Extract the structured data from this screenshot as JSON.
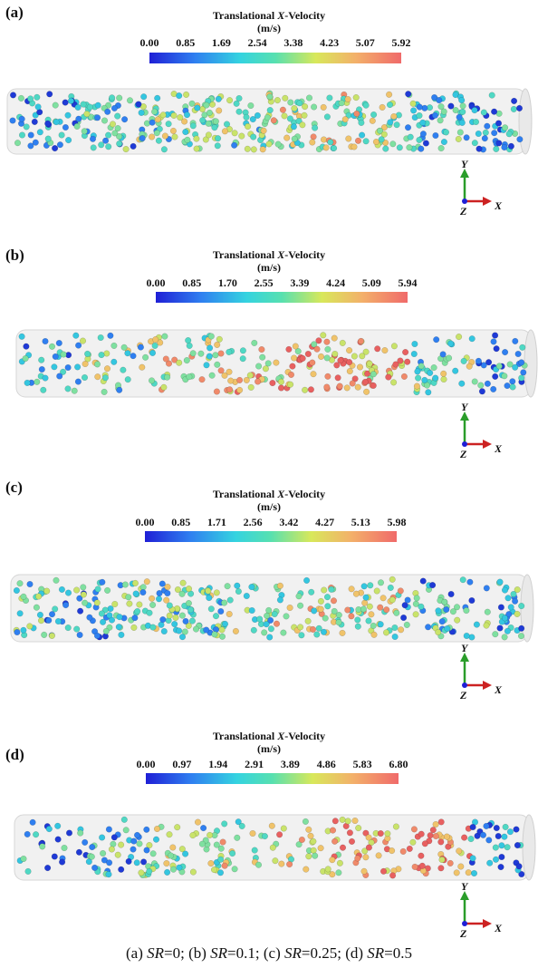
{
  "colorbar": {
    "title_prefix": "Translational ",
    "title_var": "X",
    "title_suffix": "-Velocity",
    "units": "(m/s)"
  },
  "panels": [
    {
      "label": "(a)",
      "ticks": [
        "0.00",
        "0.85",
        "1.69",
        "2.54",
        "3.38",
        "4.23",
        "5.07",
        "5.92"
      ]
    },
    {
      "label": "(b)",
      "ticks": [
        "0.00",
        "0.85",
        "1.70",
        "2.55",
        "3.39",
        "4.24",
        "5.09",
        "5.94"
      ]
    },
    {
      "label": "(c)",
      "ticks": [
        "0.00",
        "0.85",
        "1.71",
        "2.56",
        "3.42",
        "4.27",
        "5.13",
        "5.98"
      ]
    },
    {
      "label": "(d)",
      "ticks": [
        "0.00",
        "0.97",
        "1.94",
        "2.91",
        "3.89",
        "4.86",
        "5.83",
        "6.80"
      ]
    }
  ],
  "axes": {
    "y": "Y",
    "x": "X",
    "z": "Z"
  },
  "caption": {
    "a_label": "(a)",
    "a_var": "SR",
    "a_val": "=0;",
    "b_label": "(b)",
    "b_var": "SR",
    "b_val": "=0.1;",
    "c_label": "(c)",
    "c_var": "SR",
    "c_val": "=0.25;",
    "d_label": "(d)",
    "d_var": "SR",
    "d_val": "=0.5"
  },
  "colors": {
    "low": "#1f1fd6",
    "mid": "#34d3e0",
    "high": "#f06a6a",
    "tube": "#f2f2f2"
  }
}
